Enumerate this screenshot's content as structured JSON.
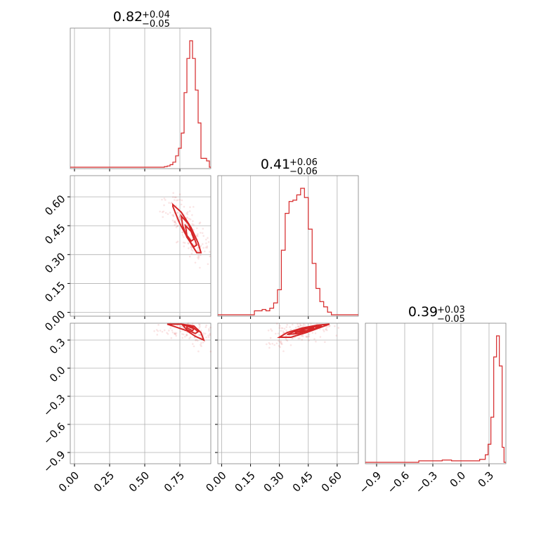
{
  "chart_data": [
    {
      "type": "histogram",
      "panel": "diag-0",
      "title": {
        "value": "0.82",
        "plus": "+0.04",
        "minus": "−0.05"
      },
      "xlim": [
        -0.03,
        0.97
      ],
      "xticks": [
        0.0,
        0.25,
        0.5,
        0.75
      ],
      "xtick_labels": [
        "0.00",
        "0.25",
        "0.50",
        "0.75"
      ],
      "bins": [
        0.62,
        0.64,
        0.66,
        0.68,
        0.7,
        0.72,
        0.74,
        0.76,
        0.78,
        0.8,
        0.82,
        0.84,
        0.86,
        0.88,
        0.9,
        0.92,
        0.94,
        0.96
      ],
      "counts": [
        0,
        0.5,
        1,
        2,
        4,
        9,
        15,
        27,
        59,
        86,
        100,
        86,
        61,
        35,
        7,
        7,
        5,
        3
      ]
    },
    {
      "type": "histogram",
      "panel": "diag-1",
      "title": {
        "value": "0.41",
        "plus": "+0.06",
        "minus": "−0.06"
      },
      "xlim": [
        -0.02,
        0.7
      ],
      "bins": [
        0.13,
        0.15,
        0.17,
        0.19,
        0.21,
        0.23,
        0.25,
        0.27,
        0.29,
        0.31,
        0.33,
        0.35,
        0.37,
        0.39,
        0.41,
        0.43,
        0.45,
        0.47,
        0.49,
        0.51,
        0.53,
        0.55,
        0.57,
        0.59
      ],
      "counts": [
        0,
        0,
        3,
        3,
        4,
        3,
        5,
        9,
        19,
        49,
        77,
        86,
        87,
        91,
        96,
        89,
        65,
        39,
        20,
        10,
        6,
        2,
        0,
        0
      ]
    },
    {
      "type": "histogram",
      "panel": "diag-2",
      "title": {
        "value": "0.39",
        "plus": "+0.03",
        "minus": "−0.05"
      },
      "xlim": [
        -1.02,
        0.48
      ],
      "xticks": [
        -0.9,
        -0.6,
        -0.3,
        0.0,
        0.3
      ],
      "xtick_labels": [
        "−0.9",
        "−0.6",
        "−0.3",
        "0.0",
        "0.3"
      ],
      "bins": [
        -0.6,
        -0.45,
        -0.3,
        -0.2,
        -0.1,
        0.0,
        0.1,
        0.2,
        0.23,
        0.26,
        0.29,
        0.32,
        0.35,
        0.38,
        0.41,
        0.44,
        0.46
      ],
      "counts": [
        0,
        1,
        1,
        1.5,
        1,
        1,
        1,
        2,
        2,
        5,
        12,
        30,
        70,
        84,
        64,
        10,
        0
      ]
    },
    {
      "type": "scatter",
      "panel": "p10",
      "xlabel_var": "param0",
      "ylabel_var": "param1",
      "ylim": [
        -0.02,
        0.71
      ],
      "yticks": [
        0.0,
        0.15,
        0.3,
        0.45,
        0.6
      ],
      "ytick_labels": [
        "0.00",
        "0.15",
        "0.30",
        "0.45",
        "0.60"
      ],
      "contours": [
        [
          [
            0.7,
            0.56
          ],
          [
            0.76,
            0.52
          ],
          [
            0.83,
            0.44
          ],
          [
            0.88,
            0.36
          ],
          [
            0.9,
            0.31
          ],
          [
            0.87,
            0.31
          ],
          [
            0.81,
            0.38
          ],
          [
            0.75,
            0.46
          ],
          [
            0.7,
            0.55
          ]
        ],
        [
          [
            0.76,
            0.5
          ],
          [
            0.81,
            0.46
          ],
          [
            0.85,
            0.39
          ],
          [
            0.87,
            0.35
          ],
          [
            0.85,
            0.34
          ],
          [
            0.8,
            0.39
          ],
          [
            0.77,
            0.45
          ],
          [
            0.76,
            0.5
          ]
        ],
        [
          [
            0.79,
            0.45
          ],
          [
            0.83,
            0.42
          ],
          [
            0.85,
            0.38
          ],
          [
            0.83,
            0.37
          ],
          [
            0.8,
            0.4
          ],
          [
            0.79,
            0.45
          ]
        ]
      ]
    },
    {
      "type": "scatter",
      "panel": "p20",
      "ylim": [
        -1.02,
        0.48
      ],
      "yticks": [
        -0.9,
        -0.6,
        -0.3,
        0.0,
        0.3
      ],
      "ytick_labels": [
        "−0.9",
        "−0.6",
        "−0.3",
        "0.0",
        "0.3"
      ],
      "xticks": [
        0.0,
        0.25,
        0.5,
        0.75
      ],
      "xtick_labels": [
        "0.00",
        "0.25",
        "0.50",
        "0.75"
      ],
      "contours": [
        [
          [
            0.66,
            0.47
          ],
          [
            0.76,
            0.47
          ],
          [
            0.85,
            0.45
          ],
          [
            0.9,
            0.38
          ],
          [
            0.92,
            0.3
          ],
          [
            0.86,
            0.34
          ],
          [
            0.8,
            0.4
          ],
          [
            0.72,
            0.44
          ],
          [
            0.66,
            0.47
          ]
        ],
        [
          [
            0.77,
            0.46
          ],
          [
            0.84,
            0.44
          ],
          [
            0.88,
            0.39
          ],
          [
            0.86,
            0.37
          ],
          [
            0.8,
            0.41
          ],
          [
            0.77,
            0.46
          ]
        ],
        [
          [
            0.8,
            0.45
          ],
          [
            0.85,
            0.42
          ],
          [
            0.84,
            0.4
          ],
          [
            0.8,
            0.43
          ],
          [
            0.8,
            0.45
          ]
        ]
      ]
    },
    {
      "type": "scatter",
      "panel": "p21",
      "xticks": [
        0.0,
        0.15,
        0.3,
        0.45,
        0.6
      ],
      "xtick_labels": [
        "0.00",
        "0.15",
        "0.30",
        "0.45",
        "0.60"
      ],
      "contours": [
        [
          [
            0.3,
            0.33
          ],
          [
            0.34,
            0.38
          ],
          [
            0.42,
            0.43
          ],
          [
            0.5,
            0.46
          ],
          [
            0.56,
            0.47
          ],
          [
            0.52,
            0.44
          ],
          [
            0.44,
            0.38
          ],
          [
            0.36,
            0.33
          ],
          [
            0.3,
            0.33
          ]
        ],
        [
          [
            0.34,
            0.36
          ],
          [
            0.4,
            0.41
          ],
          [
            0.47,
            0.44
          ],
          [
            0.52,
            0.45
          ],
          [
            0.48,
            0.42
          ],
          [
            0.4,
            0.37
          ],
          [
            0.34,
            0.36
          ]
        ],
        [
          [
            0.38,
            0.38
          ],
          [
            0.44,
            0.42
          ],
          [
            0.48,
            0.43
          ],
          [
            0.44,
            0.4
          ],
          [
            0.38,
            0.38
          ]
        ]
      ]
    }
  ]
}
